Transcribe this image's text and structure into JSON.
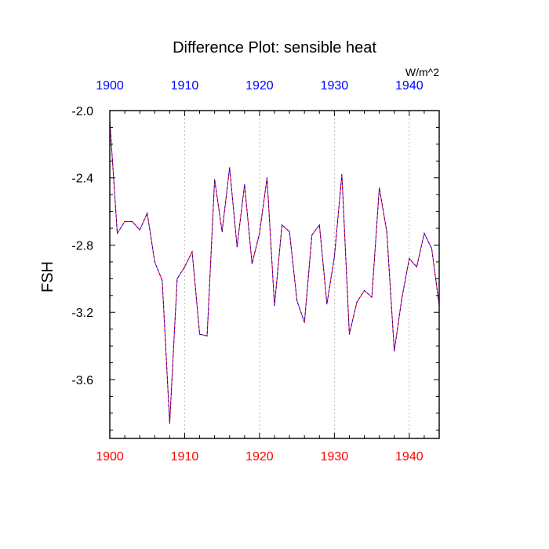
{
  "chart_data": {
    "type": "line",
    "title": "Difference Plot: sensible heat",
    "units": "W/m^2",
    "ylabel": "FSH",
    "xlabel": "",
    "xlim": [
      1900,
      1944
    ],
    "ylim": [
      -3.95,
      -2.0
    ],
    "x_ticks": [
      1900,
      1910,
      1920,
      1930,
      1940
    ],
    "x_tick_labels": [
      "1900",
      "1910",
      "1920",
      "1930",
      "1940"
    ],
    "y_ticks": [
      -2.0,
      -2.4,
      -2.8,
      -3.2,
      -3.6
    ],
    "y_tick_labels": [
      "-2.0",
      "-2.4",
      "-2.8",
      "-3.2",
      "-3.6"
    ],
    "grid": "vertical dashed at major x ticks",
    "colors": {
      "top_axis_labels": "#0000ff",
      "bottom_axis_labels": "#ff0000",
      "line_primary": "#ff0000",
      "line_secondary": "#0000ff"
    },
    "series": [
      {
        "x": [
          1900,
          1901,
          1902,
          1903,
          1904,
          1905,
          1906,
          1907,
          1908,
          1909,
          1910,
          1911,
          1912,
          1913,
          1914,
          1915,
          1916,
          1917,
          1918,
          1919,
          1920,
          1921,
          1922,
          1923,
          1924,
          1925,
          1926,
          1927,
          1928,
          1929,
          1930,
          1931,
          1932,
          1933,
          1934,
          1935,
          1936,
          1937,
          1938,
          1939,
          1940,
          1941,
          1942,
          1943,
          1944
        ],
        "values": [
          -2.06,
          -2.73,
          -2.66,
          -2.66,
          -2.71,
          -2.61,
          -2.9,
          -3.01,
          -3.86,
          -3.0,
          -2.93,
          -2.84,
          -3.33,
          -3.34,
          -2.41,
          -2.72,
          -2.34,
          -2.81,
          -2.44,
          -2.91,
          -2.73,
          -2.4,
          -3.16,
          -2.68,
          -2.72,
          -3.13,
          -3.26,
          -2.74,
          -2.68,
          -3.15,
          -2.87,
          -2.38,
          -3.33,
          -3.14,
          -3.07,
          -3.11,
          -2.46,
          -2.72,
          -3.43,
          -3.12,
          -2.88,
          -2.93,
          -2.73,
          -2.82,
          -3.16
        ]
      }
    ]
  }
}
